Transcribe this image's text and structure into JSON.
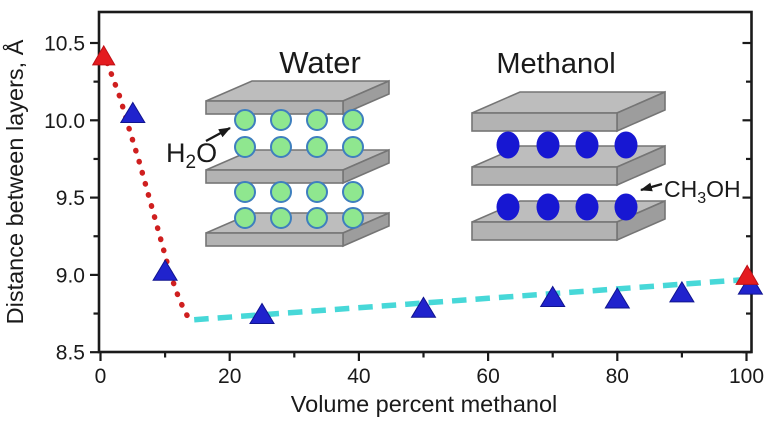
{
  "chart_data": {
    "type": "scatter",
    "title": "",
    "xlabel": "Volume percent methanol",
    "ylabel": "Distance between layers, Å",
    "xlim": [
      0,
      100
    ],
    "ylim": [
      8.5,
      10.7
    ],
    "grid": false,
    "x_ticks": [
      0,
      20,
      40,
      60,
      80,
      100
    ],
    "x_tick_labels": [
      "0",
      "20",
      "40",
      "60",
      "80",
      "100"
    ],
    "x_minor_ticks": [
      10,
      30,
      50,
      70,
      90
    ],
    "y_ticks": [
      8.5,
      9.0,
      9.5,
      10.0,
      10.5
    ],
    "y_tick_labels": [
      "8.5",
      "9.0",
      "9.5",
      "10.0",
      "10.5"
    ],
    "y_minor_ticks": [
      8.75,
      9.25,
      9.75,
      10.25
    ],
    "series": [
      {
        "name": "red-dotted-trend",
        "type": "line",
        "style": "dotted",
        "color": "#cf1f1f",
        "points": [
          [
            0.4,
            10.44
          ],
          [
            1.6,
            10.31
          ],
          [
            3.0,
            10.15
          ],
          [
            4.4,
            9.95
          ],
          [
            6.0,
            9.73
          ],
          [
            7.6,
            9.49
          ],
          [
            9.2,
            9.25
          ],
          [
            10.7,
            9.02
          ],
          [
            12.2,
            8.84
          ],
          [
            13.6,
            8.72
          ]
        ]
      },
      {
        "name": "cyan-dashed-trend",
        "type": "line",
        "style": "dashed",
        "color": "#47d8d8",
        "points": [
          [
            14.5,
            8.71
          ],
          [
            100,
            8.97
          ]
        ]
      },
      {
        "name": "blue-triangle-points",
        "type": "scatter",
        "marker": "triangle-up",
        "color": "#2023cd",
        "edge_color": "#10148f",
        "points": [
          [
            5,
            10.04
          ],
          [
            10,
            9.02
          ],
          [
            25,
            8.74
          ],
          [
            50,
            8.78
          ],
          [
            70,
            8.85
          ],
          [
            80,
            8.84
          ],
          [
            90,
            8.88
          ],
          [
            100.6,
            8.93
          ]
        ]
      },
      {
        "name": "red-triangle-points",
        "type": "scatter",
        "marker": "triangle-up",
        "color": "#e41b1f",
        "edge_color": "#c01015",
        "points": [
          [
            0.5,
            10.41
          ],
          [
            100.1,
            8.99
          ]
        ]
      }
    ]
  },
  "insets": {
    "water": {
      "title": "Water",
      "molecule_label": [
        {
          "t": "H"
        },
        {
          "t": "2",
          "sub": true
        },
        {
          "t": "O"
        }
      ],
      "rows": 4,
      "cols": 4,
      "circle_fill": "#8fe78f",
      "circle_stroke": "#3e7fbe"
    },
    "methanol": {
      "title": "Methanol",
      "molecule_label": [
        {
          "t": "CH"
        },
        {
          "t": "3",
          "sub": true
        },
        {
          "t": "OH"
        }
      ],
      "rows": 2,
      "cols": 4,
      "circle_fill": "#1717d2",
      "circle_stroke": "#1111a8"
    }
  },
  "colors": {
    "axis": "#1a1a1a",
    "background": "#ffffff",
    "slab_front": "#b3b3b3",
    "slab_top": "#bdbdbd",
    "slab_side": "#9d9d9d",
    "slab_stroke": "#757575"
  }
}
